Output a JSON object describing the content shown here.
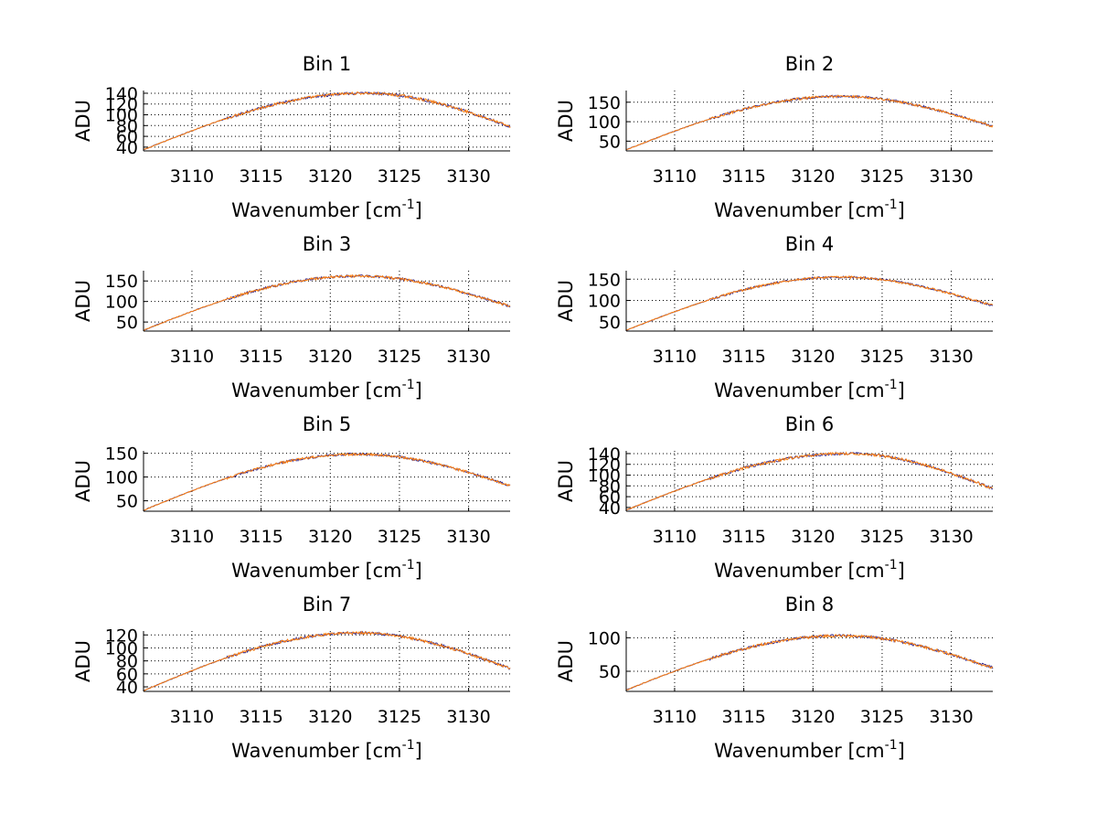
{
  "colors": {
    "background": "#ffffff",
    "axes": "#000000",
    "grid": "#000000",
    "series_primary": "#ff7f0e",
    "series_secondary": "#3b2f8f"
  },
  "chart_data": [
    {
      "type": "line",
      "title": "Bin 1",
      "xlabel": "Wavenumber [cm",
      "xlabel_sup": "-1",
      "xlabel_close": "]",
      "ylabel": "ADU",
      "xlim": [
        3106.5,
        3133.0
      ],
      "ylim": [
        33,
        145
      ],
      "xticks": [
        3110,
        3115,
        3120,
        3125,
        3130
      ],
      "yticks": [
        40,
        60,
        80,
        100,
        120,
        140
      ],
      "peak_x": 3122.5,
      "y_start": 35,
      "y_peak": 140,
      "y_end": 78,
      "noise": 2.5
    },
    {
      "type": "line",
      "title": "Bin 2",
      "xlabel": "Wavenumber [cm",
      "xlabel_sup": "-1",
      "xlabel_close": "]",
      "ylabel": "ADU",
      "xlim": [
        3106.5,
        3133.0
      ],
      "ylim": [
        25,
        180
      ],
      "xticks": [
        3110,
        3115,
        3120,
        3125,
        3130
      ],
      "yticks": [
        50,
        100,
        150
      ],
      "peak_x": 3122.0,
      "y_start": 28,
      "y_peak": 165,
      "y_end": 88,
      "noise": 3.0
    },
    {
      "type": "line",
      "title": "Bin 3",
      "xlabel": "Wavenumber [cm",
      "xlabel_sup": "-1",
      "xlabel_close": "]",
      "ylabel": "ADU",
      "xlim": [
        3106.5,
        3133.0
      ],
      "ylim": [
        28,
        175
      ],
      "xticks": [
        3110,
        3115,
        3120,
        3125,
        3130
      ],
      "yticks": [
        50,
        100,
        150
      ],
      "peak_x": 3122.0,
      "y_start": 30,
      "y_peak": 162,
      "y_end": 88,
      "noise": 3.0
    },
    {
      "type": "line",
      "title": "Bin 4",
      "xlabel": "Wavenumber [cm",
      "xlabel_sup": "-1",
      "xlabel_close": "]",
      "ylabel": "ADU",
      "xlim": [
        3106.5,
        3133.0
      ],
      "ylim": [
        28,
        170
      ],
      "xticks": [
        3110,
        3115,
        3120,
        3125,
        3130
      ],
      "yticks": [
        50,
        100,
        150
      ],
      "peak_x": 3122.0,
      "y_start": 30,
      "y_peak": 155,
      "y_end": 88,
      "noise": 2.5
    },
    {
      "type": "line",
      "title": "Bin 5",
      "xlabel": "Wavenumber [cm",
      "xlabel_sup": "-1",
      "xlabel_close": "]",
      "ylabel": "ADU",
      "xlim": [
        3106.5,
        3133.0
      ],
      "ylim": [
        28,
        155
      ],
      "xticks": [
        3110,
        3115,
        3120,
        3125,
        3130
      ],
      "yticks": [
        50,
        100,
        150
      ],
      "peak_x": 3122.0,
      "y_start": 30,
      "y_peak": 148,
      "y_end": 82,
      "noise": 2.5
    },
    {
      "type": "line",
      "title": "Bin 6",
      "xlabel": "Wavenumber [cm",
      "xlabel_sup": "-1",
      "xlabel_close": "]",
      "ylabel": "ADU",
      "xlim": [
        3106.5,
        3133.0
      ],
      "ylim": [
        33,
        145
      ],
      "xticks": [
        3110,
        3115,
        3120,
        3125,
        3130
      ],
      "yticks": [
        40,
        60,
        80,
        100,
        120,
        140
      ],
      "peak_x": 3122.5,
      "y_start": 35,
      "y_peak": 140,
      "y_end": 75,
      "noise": 2.5
    },
    {
      "type": "line",
      "title": "Bin 7",
      "xlabel": "Wavenumber [cm",
      "xlabel_sup": "-1",
      "xlabel_close": "]",
      "ylabel": "ADU",
      "xlim": [
        3106.5,
        3133.0
      ],
      "ylim": [
        33,
        126
      ],
      "xticks": [
        3110,
        3115,
        3120,
        3125,
        3130
      ],
      "yticks": [
        40,
        60,
        80,
        100,
        120
      ],
      "peak_x": 3122.0,
      "y_start": 34,
      "y_peak": 123,
      "y_end": 68,
      "noise": 2.0
    },
    {
      "type": "line",
      "title": "Bin 8",
      "xlabel": "Wavenumber [cm",
      "xlabel_sup": "-1",
      "xlabel_close": "]",
      "ylabel": "ADU",
      "xlim": [
        3106.5,
        3133.0
      ],
      "ylim": [
        20,
        110
      ],
      "xticks": [
        3110,
        3115,
        3120,
        3125,
        3130
      ],
      "yticks": [
        50,
        100
      ],
      "peak_x": 3122.0,
      "y_start": 22,
      "y_peak": 103,
      "y_end": 55,
      "noise": 2.0
    }
  ]
}
